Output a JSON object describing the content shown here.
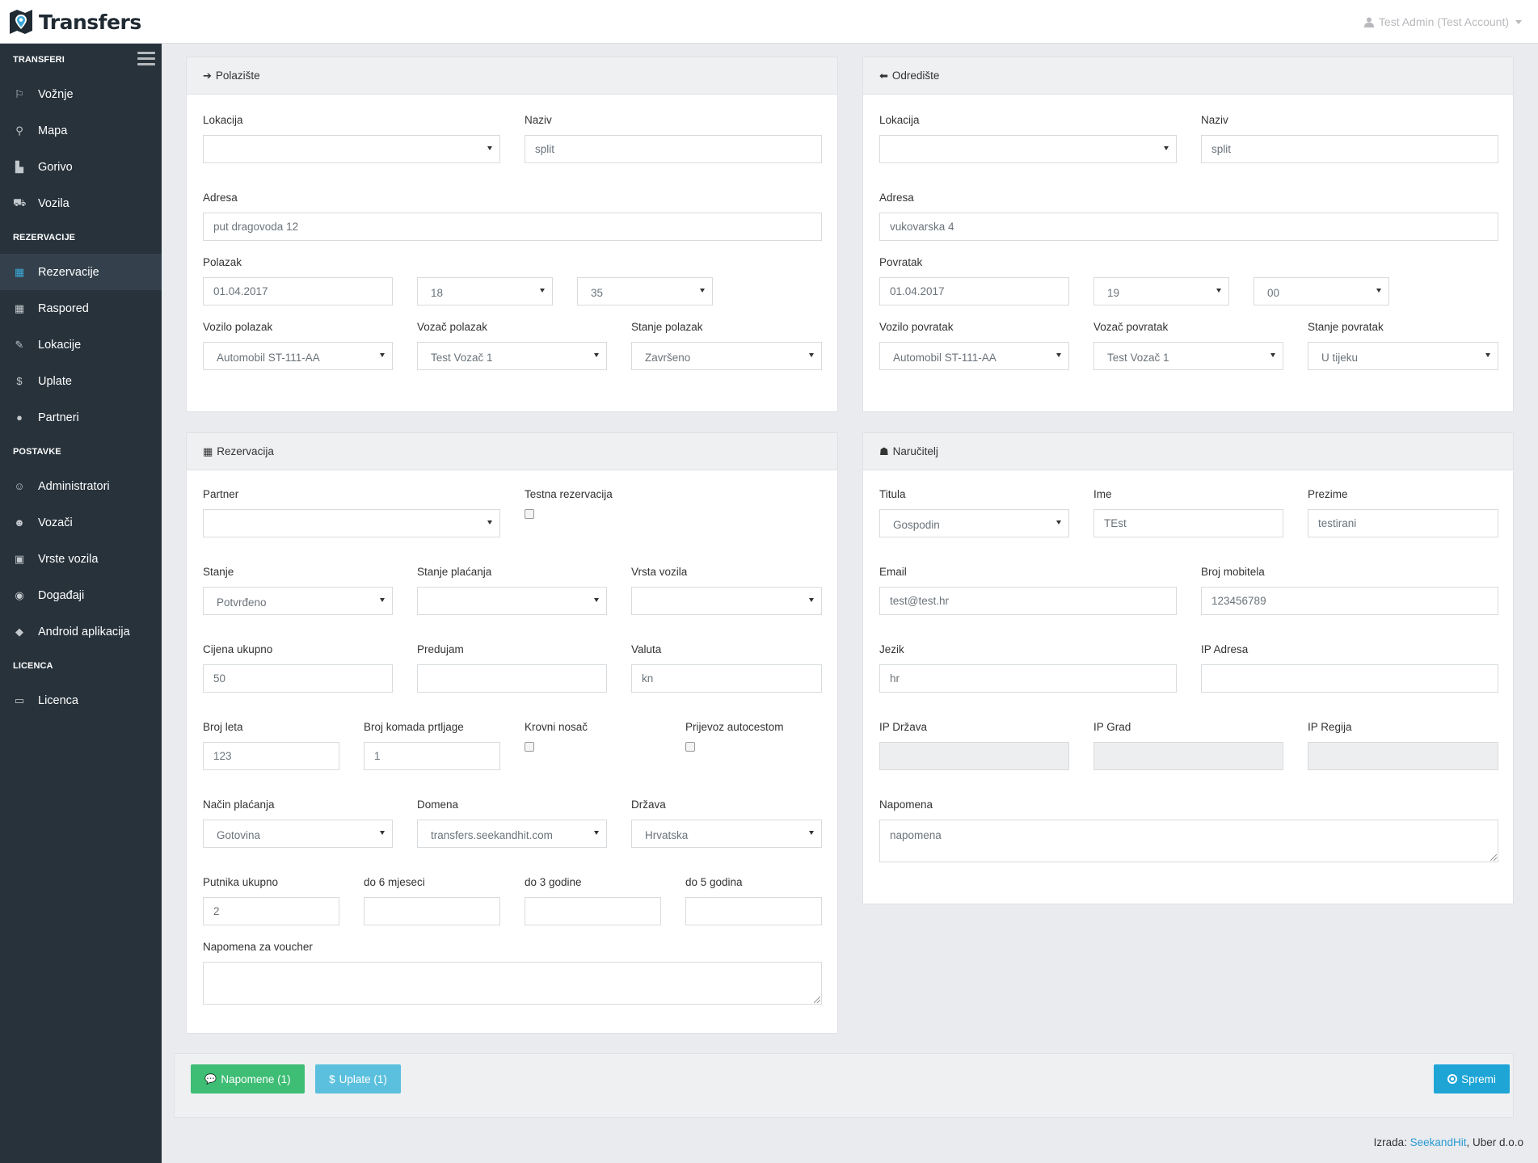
{
  "app": {
    "title": "Transfers"
  },
  "user": {
    "name": "Test Admin (Test Account)"
  },
  "sidebar": {
    "sections": [
      {
        "title": "TRANSFERI",
        "items": [
          {
            "label": "Vožnje",
            "icon": "signpost-icon"
          },
          {
            "label": "Mapa",
            "icon": "map-marker-icon"
          },
          {
            "label": "Gorivo",
            "icon": "road-icon"
          },
          {
            "label": "Vozila",
            "icon": "car-icon"
          }
        ]
      },
      {
        "title": "REZERVACIJE",
        "items": [
          {
            "label": "Rezervacije",
            "icon": "calendar-check-icon",
            "active": true
          },
          {
            "label": "Raspored",
            "icon": "calendar-icon"
          },
          {
            "label": "Lokacije",
            "icon": "pin-icon"
          },
          {
            "label": "Uplate",
            "icon": "dollar-icon"
          },
          {
            "label": "Partneri",
            "icon": "globe-icon"
          }
        ]
      },
      {
        "title": "POSTAVKE",
        "items": [
          {
            "label": "Administratori",
            "icon": "user-icon"
          },
          {
            "label": "Vozači",
            "icon": "users-icon"
          },
          {
            "label": "Vrste vozila",
            "icon": "bus-icon"
          },
          {
            "label": "Događaji",
            "icon": "eye-icon"
          },
          {
            "label": "Android aplikacija",
            "icon": "android-icon"
          }
        ]
      },
      {
        "title": "LICENCA",
        "items": [
          {
            "label": "Licenca",
            "icon": "credit-card-icon"
          }
        ]
      }
    ]
  },
  "polaziste": {
    "title": "Polazište",
    "lokacija_label": "Lokacija",
    "lokacija": "",
    "naziv_label": "Naziv",
    "naziv": "split",
    "adresa_label": "Adresa",
    "adresa": "put dragovoda 12",
    "vrijeme_label": "Polazak",
    "datum": "01.04.2017",
    "sat": "18",
    "minuta": "35",
    "vozilo_label": "Vozilo polazak",
    "vozilo": "Automobil ST-111-AA",
    "vozac_label": "Vozač polazak",
    "vozac": "Test Vozač 1",
    "stanje_label": "Stanje polazak",
    "stanje": "Završeno"
  },
  "odrediste": {
    "title": "Odredište",
    "lokacija_label": "Lokacija",
    "lokacija": "",
    "naziv_label": "Naziv",
    "naziv": "split",
    "adresa_label": "Adresa",
    "adresa": "vukovarska 4",
    "vrijeme_label": "Povratak",
    "datum": "01.04.2017",
    "sat": "19",
    "minuta": "00",
    "vozilo_label": "Vozilo povratak",
    "vozilo": "Automobil ST-111-AA",
    "vozac_label": "Vozač povratak",
    "vozac": "Test Vozač 1",
    "stanje_label": "Stanje povratak",
    "stanje": "U tijeku"
  },
  "rezervacija": {
    "title": "Rezervacija",
    "partner_label": "Partner",
    "partner": "",
    "testna_label": "Testna rezervacija",
    "stanje_label": "Stanje",
    "stanje": "Potvrđeno",
    "stanje_placanja_label": "Stanje plaćanja",
    "stanje_placanja": "",
    "vrsta_vozila_label": "Vrsta vozila",
    "vrsta_vozila": "",
    "cijena_label": "Cijena ukupno",
    "cijena": "50",
    "predujam_label": "Predujam",
    "predujam": "",
    "valuta_label": "Valuta",
    "valuta": "kn",
    "broj_leta_label": "Broj leta",
    "broj_leta": "123",
    "prtljaga_label": "Broj komada prtljage",
    "prtljaga": "1",
    "krovni_label": "Krovni nosač",
    "autocesta_label": "Prijevoz autocestom",
    "nacin_label": "Način plaćanja",
    "nacin": "Gotovina",
    "domena_label": "Domena",
    "domena": "transfers.seekandhit.com",
    "drzava_label": "Država",
    "drzava": "Hrvatska",
    "putnika_label": "Putnika ukupno",
    "putnika": "2",
    "do6m_label": "do 6 mjeseci",
    "do6m": "",
    "do3g_label": "do 3 godine",
    "do3g": "",
    "do5g_label": "do 5 godina",
    "do5g": "",
    "napomena_label": "Napomena za voucher",
    "napomena": ""
  },
  "narucitelj": {
    "title": "Naručitelj",
    "titula_label": "Titula",
    "titula": "Gospodin",
    "ime_label": "Ime",
    "ime": "TEst",
    "prezime_label": "Prezime",
    "prezime": "testirani",
    "email_label": "Email",
    "email": "test@test.hr",
    "mobitel_label": "Broj mobitela",
    "mobitel": "123456789",
    "jezik_label": "Jezik",
    "jezik": "hr",
    "ip_label": "IP Adresa",
    "ip": "",
    "ip_drzava_label": "IP Država",
    "ip_drzava": "",
    "ip_grad_label": "IP Grad",
    "ip_grad": "",
    "ip_regija_label": "IP Regija",
    "ip_regija": "",
    "napomena_label": "Napomena",
    "napomena": "napomena"
  },
  "actions": {
    "napomene": "Napomene (1)",
    "uplate": "Uplate (1)",
    "spremi": "Spremi"
  },
  "footer": {
    "prefix": "Izrada:",
    "link": "SeekandHit",
    "suffix": ", Uber d.o.o"
  }
}
